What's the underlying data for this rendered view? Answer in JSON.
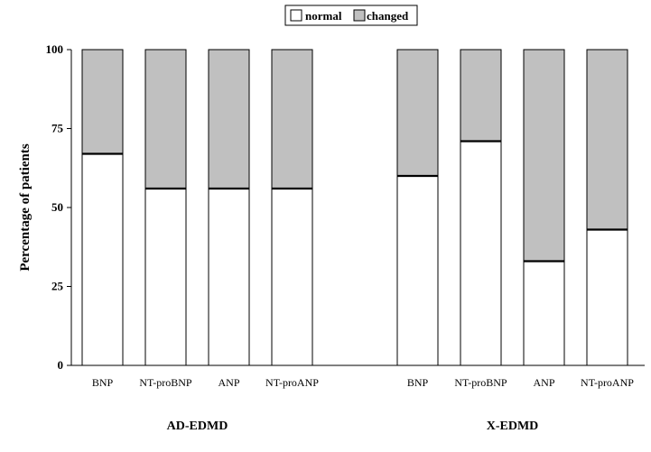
{
  "chart_data": {
    "type": "bar",
    "stacked": true,
    "ylabel": "Percentage of patients",
    "ylim": [
      0,
      100
    ],
    "yticks": [
      "0",
      "25",
      "50",
      "75",
      "100"
    ],
    "grid": false,
    "legend_position": "top-center",
    "groups": [
      {
        "label": "AD-EDMD",
        "categories": [
          "BNP",
          "NT-proBNP",
          "ANP",
          "NT-proANP"
        ],
        "normal": [
          67,
          56,
          56,
          56
        ],
        "changed": [
          33,
          44,
          44,
          44
        ]
      },
      {
        "label": "X-EDMD",
        "categories": [
          "BNP",
          "NT-proBNP",
          "ANP",
          "NT-proANP"
        ],
        "normal": [
          60,
          71,
          33,
          43
        ],
        "changed": [
          40,
          29,
          67,
          57
        ]
      }
    ],
    "series": [
      {
        "name": "normal",
        "color": "#ffffff"
      },
      {
        "name": "changed",
        "color": "#c0c0c0"
      }
    ]
  }
}
